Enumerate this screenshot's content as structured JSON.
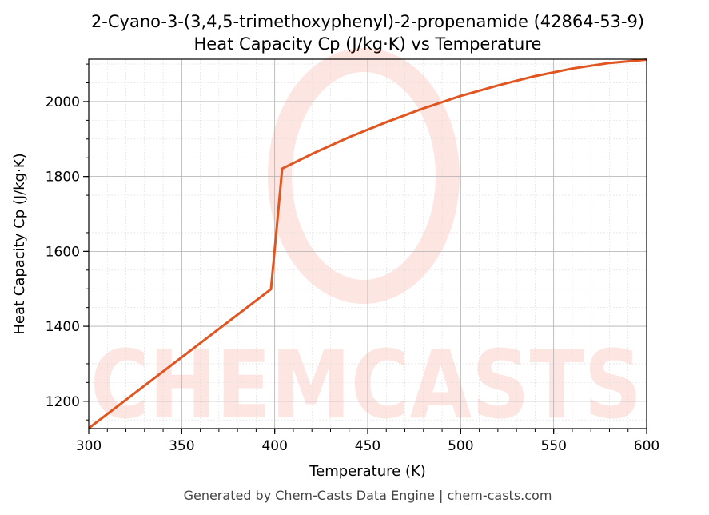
{
  "chart_data": {
    "type": "line",
    "title": "2-Cyano-3-(3,4,5-trimethoxyphenyl)-2-propenamide (42864-53-9)",
    "subtitle": "Heat Capacity Cp (J/kg·K) vs Temperature",
    "xlabel": "Temperature (K)",
    "ylabel": "Heat Capacity Cp (J/kg·K)",
    "xlim": [
      300,
      600
    ],
    "ylim": [
      1127,
      2113
    ],
    "xticks": [
      300,
      350,
      400,
      450,
      500,
      550,
      600
    ],
    "yticks": [
      1200,
      1400,
      1600,
      1800,
      2000
    ],
    "grid": true,
    "series": [
      {
        "name": "Cp",
        "color": "#e05520",
        "x": [
          300,
          398,
          404,
          420,
          440,
          460,
          480,
          500,
          520,
          540,
          560,
          580,
          600
        ],
        "y": [
          1128,
          1499,
          1821,
          1860,
          1905,
          1945,
          1982,
          2015,
          2043,
          2068,
          2088,
          2103,
          2112
        ]
      }
    ],
    "footer": "Generated by Chem-Casts Data Engine | chem-casts.com",
    "watermark": "CHEMCASTS"
  }
}
